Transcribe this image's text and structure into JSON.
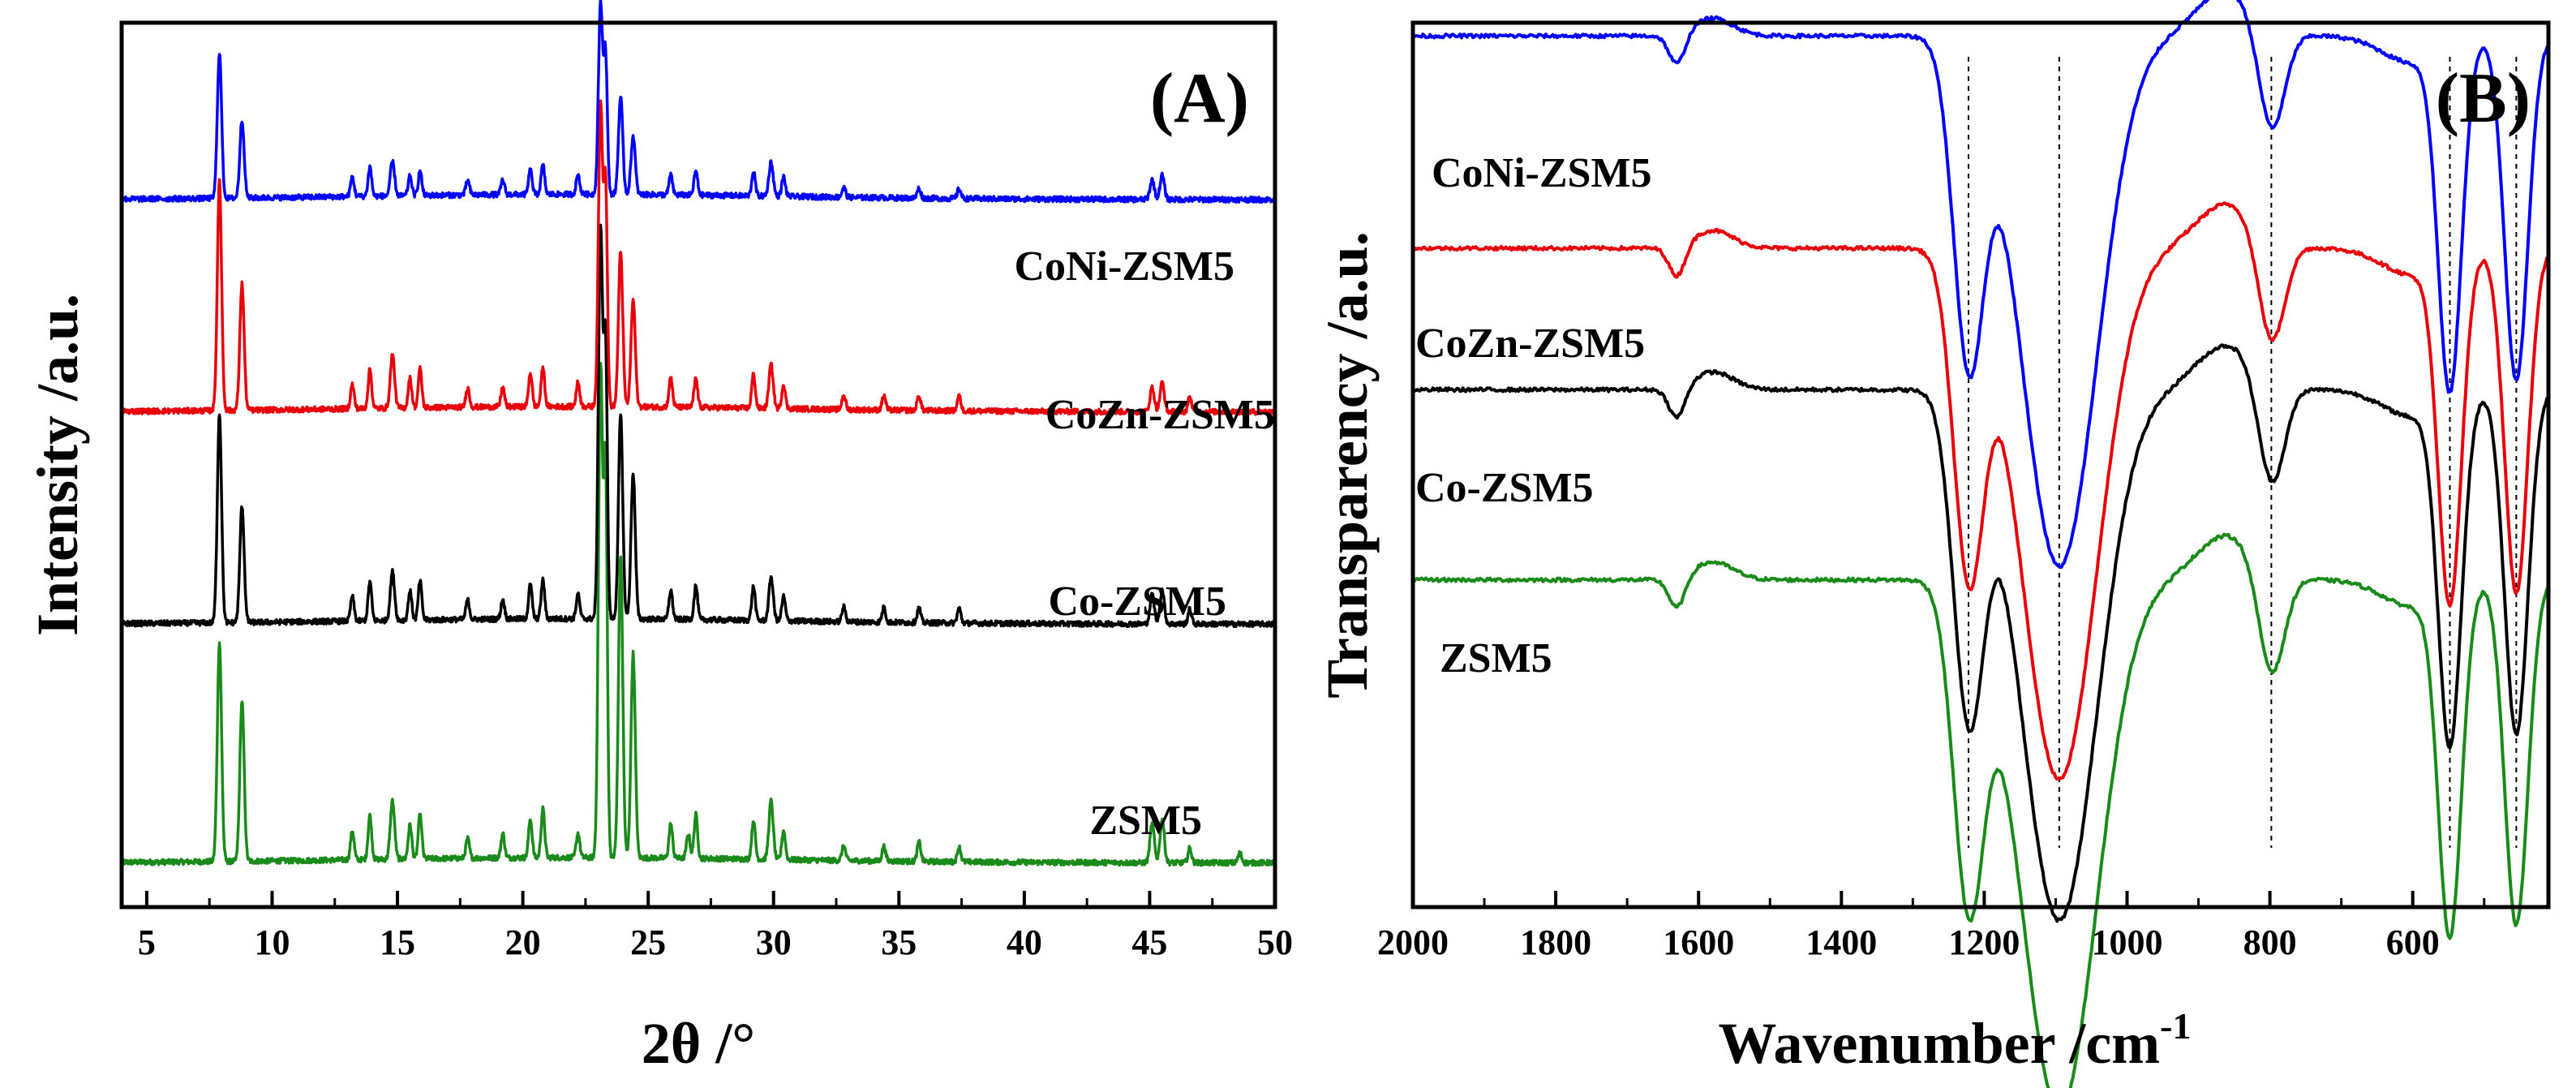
{
  "chart_data": [
    {
      "type": "line",
      "panel_label": "(A)",
      "xlabel": "2θ /°",
      "ylabel": "Intensity /a.u.",
      "xlim": [
        4,
        50
      ],
      "x_ticks": [
        5,
        10,
        15,
        20,
        25,
        30,
        35,
        40,
        45,
        50
      ],
      "x_tick_labels": [
        "5",
        "10",
        "15",
        "20",
        "25",
        "30",
        "35",
        "40",
        "45",
        "50"
      ],
      "grid": false,
      "series": [
        {
          "name": "ZSM5",
          "label": "ZSM5",
          "color": "#1a8a1a",
          "baseline": 0.05,
          "peaks": [
            [
              7.9,
              0.45,
              0.12
            ],
            [
              8.8,
              0.33,
              0.12
            ],
            [
              13.2,
              0.06,
              0.1
            ],
            [
              13.9,
              0.09,
              0.1
            ],
            [
              14.8,
              0.12,
              0.12
            ],
            [
              15.5,
              0.07,
              0.1
            ],
            [
              15.9,
              0.09,
              0.1
            ],
            [
              17.8,
              0.04,
              0.1
            ],
            [
              19.2,
              0.05,
              0.1
            ],
            [
              20.3,
              0.08,
              0.1
            ],
            [
              20.8,
              0.1,
              0.1
            ],
            [
              22.2,
              0.05,
              0.1
            ],
            [
              23.1,
              1.0,
              0.12
            ],
            [
              23.3,
              0.78,
              0.1
            ],
            [
              23.9,
              0.62,
              0.12
            ],
            [
              24.4,
              0.42,
              0.12
            ],
            [
              25.9,
              0.07,
              0.1
            ],
            [
              26.6,
              0.05,
              0.1
            ],
            [
              26.9,
              0.09,
              0.1
            ],
            [
              29.2,
              0.08,
              0.1
            ],
            [
              29.9,
              0.12,
              0.12
            ],
            [
              30.4,
              0.06,
              0.1
            ],
            [
              32.8,
              0.03,
              0.1
            ],
            [
              34.4,
              0.03,
              0.1
            ],
            [
              35.8,
              0.04,
              0.1
            ],
            [
              37.4,
              0.03,
              0.1
            ],
            [
              45.1,
              0.08,
              0.12
            ],
            [
              45.5,
              0.09,
              0.12
            ],
            [
              46.6,
              0.03,
              0.1
            ],
            [
              48.6,
              0.02,
              0.1
            ]
          ]
        },
        {
          "name": "Co-ZSM5",
          "label": "Co-ZSM5",
          "color": "#000000",
          "baseline": 0.32,
          "peaks": [
            [
              7.9,
              0.43,
              0.12
            ],
            [
              8.8,
              0.24,
              0.12
            ],
            [
              13.2,
              0.05,
              0.1
            ],
            [
              13.9,
              0.08,
              0.1
            ],
            [
              14.8,
              0.1,
              0.12
            ],
            [
              15.5,
              0.06,
              0.1
            ],
            [
              15.9,
              0.08,
              0.1
            ],
            [
              17.8,
              0.04,
              0.1
            ],
            [
              19.2,
              0.04,
              0.1
            ],
            [
              20.3,
              0.07,
              0.1
            ],
            [
              20.8,
              0.08,
              0.1
            ],
            [
              22.2,
              0.05,
              0.1
            ],
            [
              23.1,
              0.8,
              0.12
            ],
            [
              23.3,
              0.55,
              0.1
            ],
            [
              23.9,
              0.42,
              0.12
            ],
            [
              24.4,
              0.3,
              0.12
            ],
            [
              25.9,
              0.06,
              0.1
            ],
            [
              26.9,
              0.07,
              0.1
            ],
            [
              29.2,
              0.07,
              0.1
            ],
            [
              29.9,
              0.09,
              0.12
            ],
            [
              30.4,
              0.05,
              0.1
            ],
            [
              32.8,
              0.03,
              0.1
            ],
            [
              34.4,
              0.03,
              0.1
            ],
            [
              35.8,
              0.03,
              0.1
            ],
            [
              37.4,
              0.03,
              0.1
            ],
            [
              45.1,
              0.06,
              0.12
            ],
            [
              45.5,
              0.07,
              0.12
            ],
            [
              46.6,
              0.03,
              0.1
            ]
          ]
        },
        {
          "name": "CoZn-ZSM5",
          "label": "CoZn-ZSM5",
          "color": "#e8000b",
          "baseline": 0.56,
          "peaks": [
            [
              7.9,
              0.47,
              0.12
            ],
            [
              8.8,
              0.26,
              0.12
            ],
            [
              13.2,
              0.05,
              0.1
            ],
            [
              13.9,
              0.08,
              0.1
            ],
            [
              14.8,
              0.11,
              0.12
            ],
            [
              15.5,
              0.06,
              0.1
            ],
            [
              15.9,
              0.08,
              0.1
            ],
            [
              17.8,
              0.04,
              0.1
            ],
            [
              19.2,
              0.04,
              0.1
            ],
            [
              20.3,
              0.07,
              0.1
            ],
            [
              20.8,
              0.08,
              0.1
            ],
            [
              22.2,
              0.05,
              0.1
            ],
            [
              23.1,
              0.62,
              0.12
            ],
            [
              23.3,
              0.45,
              0.1
            ],
            [
              23.9,
              0.32,
              0.12
            ],
            [
              24.4,
              0.22,
              0.12
            ],
            [
              25.9,
              0.06,
              0.1
            ],
            [
              26.9,
              0.06,
              0.1
            ],
            [
              29.2,
              0.07,
              0.1
            ],
            [
              29.9,
              0.09,
              0.12
            ],
            [
              30.4,
              0.05,
              0.1
            ],
            [
              32.8,
              0.03,
              0.1
            ],
            [
              34.4,
              0.03,
              0.1
            ],
            [
              35.8,
              0.03,
              0.1
            ],
            [
              37.4,
              0.03,
              0.1
            ],
            [
              45.1,
              0.05,
              0.12
            ],
            [
              45.5,
              0.06,
              0.12
            ],
            [
              46.6,
              0.03,
              0.1
            ]
          ]
        },
        {
          "name": "CoNi-ZSM5",
          "label": "CoNi-ZSM5",
          "color": "#0000ff",
          "baseline": 0.8,
          "peaks": [
            [
              7.9,
              0.3,
              0.12
            ],
            [
              8.8,
              0.16,
              0.12
            ],
            [
              13.2,
              0.04,
              0.1
            ],
            [
              13.9,
              0.06,
              0.1
            ],
            [
              14.8,
              0.07,
              0.12
            ],
            [
              15.5,
              0.04,
              0.1
            ],
            [
              15.9,
              0.05,
              0.1
            ],
            [
              17.8,
              0.03,
              0.1
            ],
            [
              19.2,
              0.03,
              0.1
            ],
            [
              20.3,
              0.05,
              0.1
            ],
            [
              20.8,
              0.06,
              0.1
            ],
            [
              22.2,
              0.04,
              0.1
            ],
            [
              23.1,
              0.39,
              0.12
            ],
            [
              23.3,
              0.28,
              0.1
            ],
            [
              23.9,
              0.2,
              0.12
            ],
            [
              24.4,
              0.12,
              0.12
            ],
            [
              25.9,
              0.04,
              0.1
            ],
            [
              26.9,
              0.05,
              0.1
            ],
            [
              29.2,
              0.05,
              0.1
            ],
            [
              29.9,
              0.07,
              0.12
            ],
            [
              30.4,
              0.04,
              0.1
            ],
            [
              32.8,
              0.02,
              0.1
            ],
            [
              35.8,
              0.02,
              0.1
            ],
            [
              37.4,
              0.02,
              0.1
            ],
            [
              45.1,
              0.04,
              0.12
            ],
            [
              45.5,
              0.05,
              0.12
            ]
          ]
        }
      ]
    },
    {
      "type": "line",
      "panel_label": "(B)",
      "xlabel": "Wavenumber /cm",
      "xlabel_superscript": "-1",
      "ylabel": "Transparency /a.u.",
      "xlim": [
        2000,
        410
      ],
      "x_reversed": true,
      "x_ticks": [
        2000,
        1800,
        1600,
        1400,
        1200,
        1000,
        800,
        600
      ],
      "x_tick_labels": [
        "2000",
        "1800",
        "1600",
        "1400",
        "1200",
        "1000",
        "800",
        "600"
      ],
      "grid": false,
      "reference_lines": [
        1222,
        1095,
        798,
        548,
        455
      ],
      "series": [
        {
          "name": "CoNi-ZSM5",
          "label": "CoNi-ZSM5",
          "color": "#0000ff",
          "baseline": 0.985,
          "bands": [
            [
              1630,
              0.035,
              16
            ],
            [
              1222,
              0.35,
              30
            ],
            [
              1095,
              0.6,
              75
            ],
            [
              798,
              0.12,
              26
            ],
            [
              548,
              0.39,
              23
            ],
            [
              455,
              0.39,
              23
            ]
          ]
        },
        {
          "name": "CoZn-ZSM5",
          "label": "CoZn-ZSM5",
          "color": "#e8000b",
          "baseline": 0.745,
          "bands": [
            [
              1630,
              0.035,
              16
            ],
            [
              1222,
              0.35,
              30
            ],
            [
              1095,
              0.6,
              75
            ],
            [
              798,
              0.12,
              26
            ],
            [
              548,
              0.39,
              23
            ],
            [
              455,
              0.39,
              23
            ]
          ]
        },
        {
          "name": "Co-ZSM5",
          "label": "Co-ZSM5",
          "color": "#000000",
          "baseline": 0.585,
          "bands": [
            [
              1630,
              0.035,
              16
            ],
            [
              1222,
              0.35,
              30
            ],
            [
              1095,
              0.6,
              75
            ],
            [
              798,
              0.12,
              26
            ],
            [
              548,
              0.39,
              23
            ],
            [
              455,
              0.39,
              23
            ]
          ]
        },
        {
          "name": "ZSM5",
          "label": "ZSM5",
          "color": "#1a8a1a",
          "baseline": 0.37,
          "bands": [
            [
              1630,
              0.035,
              16
            ],
            [
              1222,
              0.35,
              30
            ],
            [
              1095,
              0.6,
              75
            ],
            [
              798,
              0.12,
              26
            ],
            [
              548,
              0.39,
              23
            ],
            [
              455,
              0.39,
              23
            ]
          ]
        }
      ]
    }
  ]
}
